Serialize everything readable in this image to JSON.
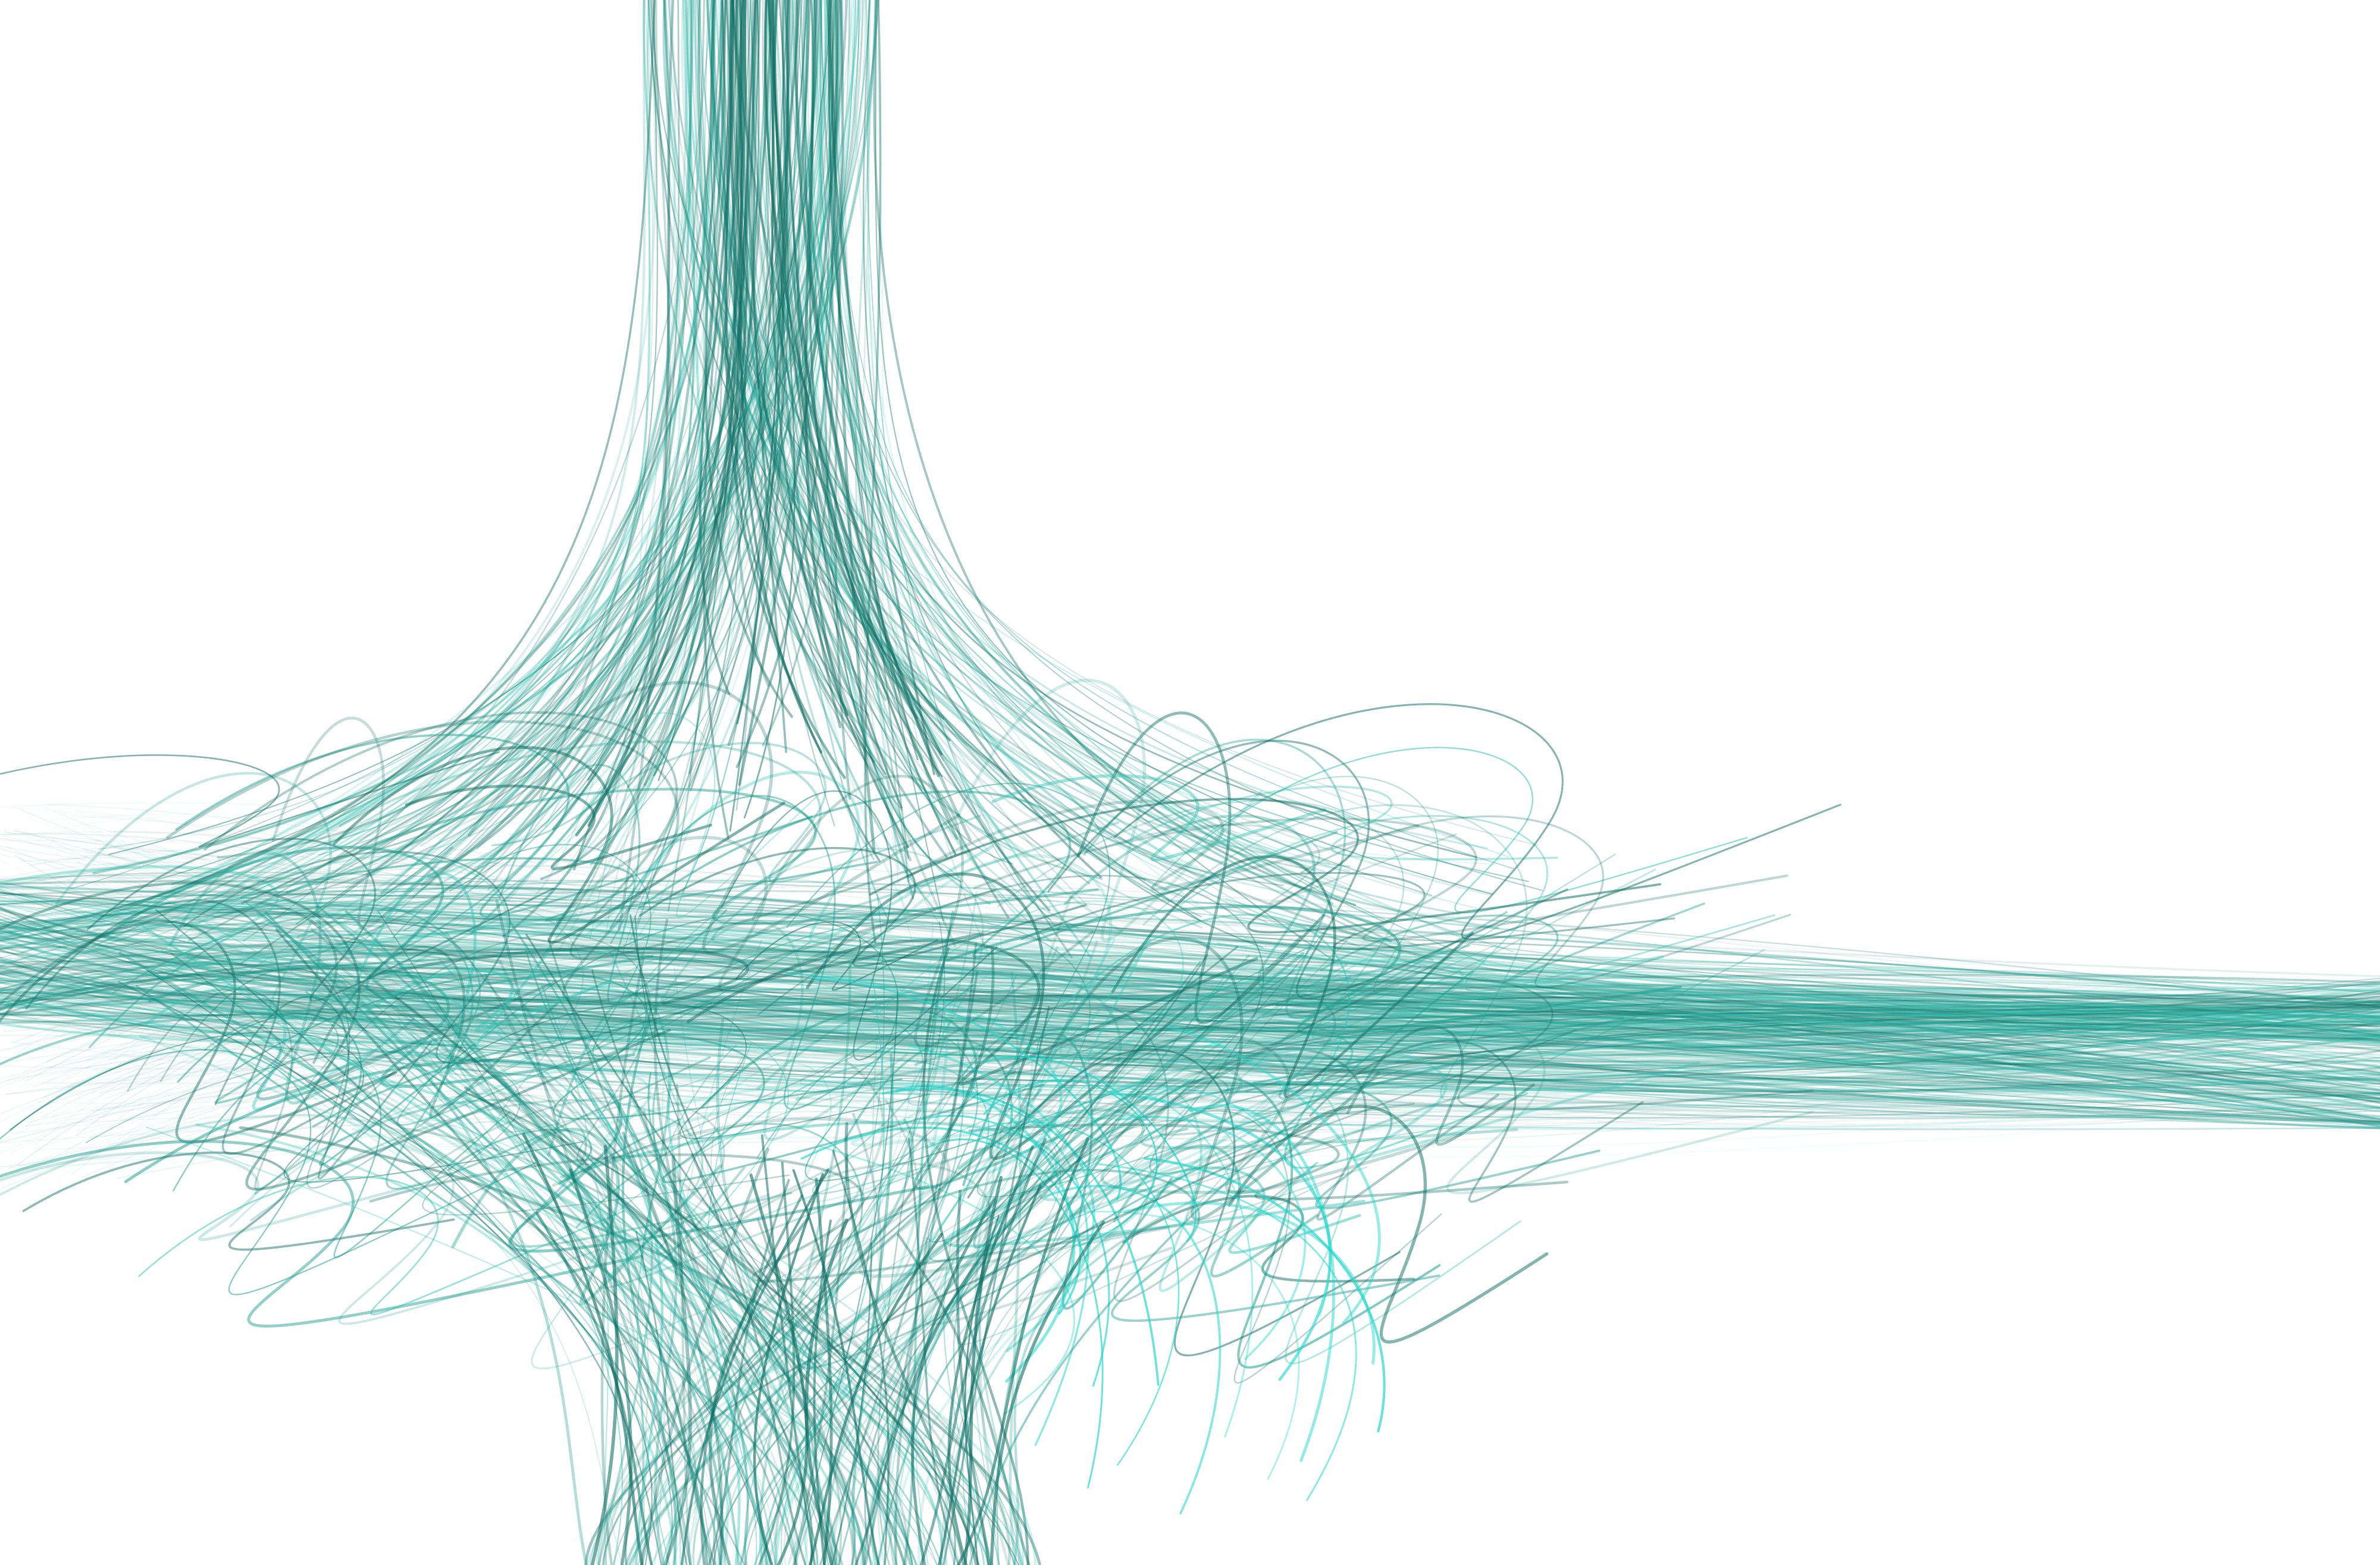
{
  "artwork": {
    "subject": "abstract-flame-fractal",
    "colors": {
      "background": "#ffffff",
      "dark": "#0f6e63",
      "mid": "#1f9e90",
      "light": "#37c3b5",
      "highlight": "#22d6cc"
    }
  }
}
